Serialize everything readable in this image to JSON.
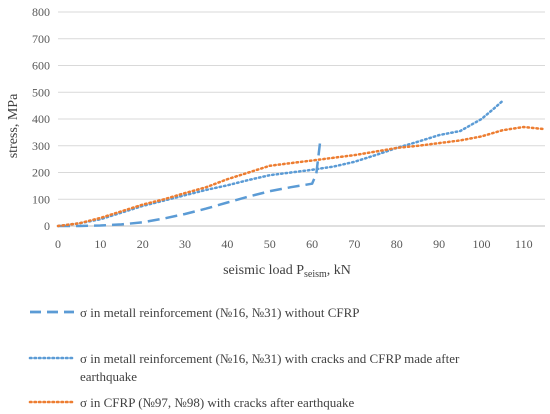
{
  "chart_data": {
    "type": "line",
    "xlabel": {
      "prefix": "seismic load P",
      "sub": "seism",
      "suffix": ", kN"
    },
    "ylabel": "stress, MPa",
    "xlim": [
      0,
      115
    ],
    "ylim": [
      0,
      800
    ],
    "x_ticks": [
      0,
      10,
      20,
      30,
      40,
      50,
      60,
      70,
      80,
      90,
      100,
      110
    ],
    "y_ticks": [
      0,
      100,
      200,
      300,
      400,
      500,
      600,
      700,
      800
    ],
    "grid": "horizontal",
    "legend_position": "bottom",
    "series": [
      {
        "name": "σ in metall reinforcement (№16, №31) without CFRP",
        "name_lines": [
          "σ in metall reinforcement (№16, №31) without CFRP"
        ],
        "color": "#5B9BD5",
        "style": "dashed",
        "points": [
          [
            0,
            0
          ],
          [
            5,
            0
          ],
          [
            10,
            2
          ],
          [
            15,
            6
          ],
          [
            20,
            14
          ],
          [
            25,
            28
          ],
          [
            30,
            45
          ],
          [
            35,
            65
          ],
          [
            40,
            88
          ],
          [
            45,
            110
          ],
          [
            50,
            130
          ],
          [
            55,
            145
          ],
          [
            60,
            158
          ],
          [
            61,
            195
          ],
          [
            61.5,
            260
          ],
          [
            62,
            330
          ]
        ]
      },
      {
        "name": "σ in metall reinforcement  (№16, №31) with cracks and CFRP made after earthquake",
        "name_lines": [
          "σ in metall reinforcement  (№16, №31) with cracks and CFRP made after",
          "earthquake"
        ],
        "color": "#5B9BD5",
        "style": "dotted",
        "points": [
          [
            0,
            0
          ],
          [
            5,
            10
          ],
          [
            10,
            25
          ],
          [
            15,
            50
          ],
          [
            20,
            75
          ],
          [
            25,
            95
          ],
          [
            30,
            115
          ],
          [
            35,
            135
          ],
          [
            40,
            152
          ],
          [
            45,
            172
          ],
          [
            50,
            190
          ],
          [
            55,
            200
          ],
          [
            60,
            210
          ],
          [
            65,
            222
          ],
          [
            70,
            240
          ],
          [
            75,
            265
          ],
          [
            80,
            292
          ],
          [
            85,
            315
          ],
          [
            90,
            340
          ],
          [
            95,
            355
          ],
          [
            100,
            400
          ],
          [
            103,
            440
          ],
          [
            105,
            468
          ]
        ]
      },
      {
        "name": "σ in CFRP (№97, №98) with cracks after earthquake",
        "name_lines": [
          "σ in CFRP (№97, №98) with cracks after earthquake"
        ],
        "color": "#ED7D31",
        "style": "dotted",
        "points": [
          [
            0,
            0
          ],
          [
            5,
            10
          ],
          [
            10,
            30
          ],
          [
            15,
            55
          ],
          [
            20,
            80
          ],
          [
            25,
            100
          ],
          [
            30,
            123
          ],
          [
            35,
            145
          ],
          [
            40,
            175
          ],
          [
            45,
            200
          ],
          [
            50,
            225
          ],
          [
            55,
            235
          ],
          [
            60,
            245
          ],
          [
            65,
            255
          ],
          [
            70,
            265
          ],
          [
            75,
            278
          ],
          [
            80,
            292
          ],
          [
            85,
            300
          ],
          [
            90,
            310
          ],
          [
            95,
            320
          ],
          [
            100,
            335
          ],
          [
            105,
            358
          ],
          [
            110,
            370
          ],
          [
            115,
            362
          ]
        ]
      }
    ]
  }
}
